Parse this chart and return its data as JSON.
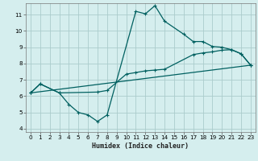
{
  "title": "",
  "xlabel": "Humidex (Indice chaleur)",
  "bg_color": "#d5eeee",
  "grid_color": "#aacccc",
  "line_color": "#006060",
  "xlim": [
    -0.5,
    23.5
  ],
  "ylim": [
    3.8,
    11.7
  ],
  "xticks": [
    0,
    1,
    2,
    3,
    4,
    5,
    6,
    7,
    8,
    9,
    10,
    11,
    12,
    13,
    14,
    15,
    16,
    17,
    18,
    19,
    20,
    21,
    22,
    23
  ],
  "yticks": [
    4,
    5,
    6,
    7,
    8,
    9,
    10,
    11
  ],
  "line1_x": [
    0,
    1,
    3,
    4,
    5,
    6,
    7,
    8,
    11,
    12,
    13,
    14,
    16,
    17,
    18,
    19,
    20,
    21,
    22,
    23
  ],
  "line1_y": [
    6.2,
    6.75,
    6.2,
    5.5,
    5.0,
    4.85,
    4.45,
    4.85,
    11.2,
    11.05,
    11.55,
    10.6,
    9.8,
    9.35,
    9.35,
    9.05,
    9.0,
    8.85,
    8.6,
    7.9
  ],
  "line2_x": [
    0,
    1,
    3,
    7,
    8,
    10,
    11,
    12,
    13,
    14,
    17,
    18,
    19,
    20,
    21,
    22,
    23
  ],
  "line2_y": [
    6.2,
    6.75,
    6.2,
    6.25,
    6.35,
    7.35,
    7.45,
    7.55,
    7.6,
    7.65,
    8.55,
    8.65,
    8.72,
    8.82,
    8.85,
    8.6,
    7.9
  ],
  "line3_x": [
    0,
    23
  ],
  "line3_y": [
    6.2,
    7.9
  ]
}
